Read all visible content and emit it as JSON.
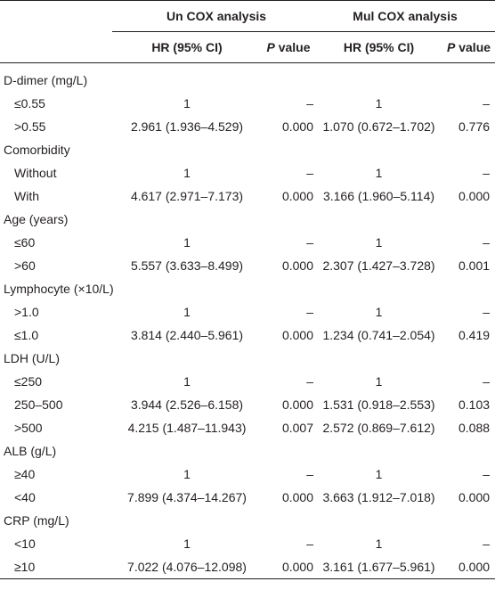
{
  "header": {
    "group1": "Un COX analysis",
    "group2": "Mul COX analysis",
    "hr_label": "HR (95% CI)",
    "p_italic": "P",
    "p_rest": " value"
  },
  "rows": [
    {
      "type": "cat",
      "label": "D-dimer (mg/L)"
    },
    {
      "type": "sub",
      "label": "≤0.55",
      "hr1": "1",
      "p1": "–",
      "hr2": "1",
      "p2": "–"
    },
    {
      "type": "sub",
      "label": ">0.55",
      "hr1": "2.961 (1.936–4.529)",
      "p1": "0.000",
      "hr2": "1.070 (0.672–1.702)",
      "p2": "0.776"
    },
    {
      "type": "cat",
      "label": "Comorbidity"
    },
    {
      "type": "sub",
      "label": "Without",
      "hr1": "1",
      "p1": "–",
      "hr2": "1",
      "p2": "–"
    },
    {
      "type": "sub",
      "label": "With",
      "hr1": "4.617 (2.971–7.173)",
      "p1": "0.000",
      "hr2": "3.166 (1.960–5.114)",
      "p2": "0.000"
    },
    {
      "type": "cat",
      "label": "Age (years)"
    },
    {
      "type": "sub",
      "label": "≤60",
      "hr1": "1",
      "p1": "–",
      "hr2": "1",
      "p2": "–"
    },
    {
      "type": "sub",
      "label": ">60",
      "hr1": "5.557 (3.633–8.499)",
      "p1": "0.000",
      "hr2": "2.307 (1.427–3.728)",
      "p2": "0.001"
    },
    {
      "type": "cat",
      "label": "Lymphocyte (×10/L)"
    },
    {
      "type": "sub",
      "label": ">1.0",
      "hr1": "1",
      "p1": "–",
      "hr2": "1",
      "p2": "–"
    },
    {
      "type": "sub",
      "label": "≤1.0",
      "hr1": "3.814 (2.440–5.961)",
      "p1": "0.000",
      "hr2": "1.234 (0.741–2.054)",
      "p2": "0.419"
    },
    {
      "type": "cat",
      "label": "LDH (U/L)"
    },
    {
      "type": "sub",
      "label": "≤250",
      "hr1": "1",
      "p1": "–",
      "hr2": "1",
      "p2": "–"
    },
    {
      "type": "sub",
      "label": "250–500",
      "hr1": "3.944 (2.526–6.158)",
      "p1": "0.000",
      "hr2": "1.531 (0.918–2.553)",
      "p2": "0.103"
    },
    {
      "type": "sub",
      "label": ">500",
      "hr1": "4.215 (1.487–11.943)",
      "p1": "0.007",
      "hr2": "2.572 (0.869–7.612)",
      "p2": "0.088"
    },
    {
      "type": "cat",
      "label": "ALB (g/L)"
    },
    {
      "type": "sub",
      "label": "≥40",
      "hr1": "1",
      "p1": "–",
      "hr2": "1",
      "p2": "–"
    },
    {
      "type": "sub",
      "label": "<40",
      "hr1": "7.899 (4.374–14.267)",
      "p1": "0.000",
      "hr2": "3.663 (1.912–7.018)",
      "p2": "0.000"
    },
    {
      "type": "cat",
      "label": "CRP (mg/L)"
    },
    {
      "type": "sub",
      "label": "<10",
      "hr1": "1",
      "p1": "–",
      "hr2": "1",
      "p2": "–"
    },
    {
      "type": "sub",
      "label": "≥10",
      "hr1": "7.022 (4.076–12.098)",
      "p1": "0.000",
      "hr2": "3.161 (1.677–5.961)",
      "p2": "0.000"
    }
  ]
}
